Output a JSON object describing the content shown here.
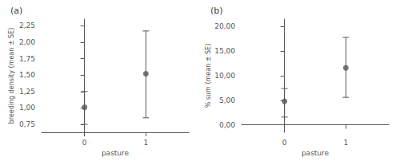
{
  "chart_data": [
    {
      "type": "scatter",
      "title": "(a)",
      "xlabel": "pasture",
      "ylabel": "breeding density (mean ± SE)",
      "x": [
        0,
        1
      ],
      "values": [
        1.01,
        1.52
      ],
      "error_upper": [
        0.24,
        0.65
      ],
      "error_lower": [
        0.26,
        0.67
      ],
      "color": "#555555",
      "grid": false,
      "xlim": [
        -0.7,
        1.7
      ],
      "xticks": [
        0,
        1
      ],
      "ylim": [
        0.63,
        2.35
      ],
      "yticks": [
        {
          "value": 0.75,
          "label": "0,75"
        },
        {
          "value": 1.0,
          "label": "1,00"
        },
        {
          "value": 1.25,
          "label": "1,25"
        },
        {
          "value": 1.5,
          "label": "1,50"
        },
        {
          "value": 1.75,
          "label": "1,75"
        },
        {
          "value": 2.0,
          "label": "2,00"
        },
        {
          "value": 2.25,
          "label": "2,25"
        }
      ]
    },
    {
      "type": "scatter",
      "title": "(b)",
      "xlabel": "pasture",
      "ylabel": "% sum (mean ± SE)",
      "x": [
        0,
        1
      ],
      "values": [
        4.8,
        11.6
      ],
      "error_upper": [
        2.6,
        6.2
      ],
      "error_lower": [
        3.2,
        6.0
      ],
      "color": "#555555",
      "grid": false,
      "xlim": [
        -0.7,
        1.7
      ],
      "xticks": [
        0,
        1
      ],
      "ylim": [
        -1.5,
        21.5
      ],
      "yticks": [
        {
          "value": 0.0,
          "label": "0,00"
        },
        {
          "value": 5.0,
          "label": "5,00"
        },
        {
          "value": 10.0,
          "label": "10,00"
        },
        {
          "value": 15.0,
          "label": "15,00"
        },
        {
          "value": 20.0,
          "label": "20,00"
        }
      ]
    }
  ]
}
